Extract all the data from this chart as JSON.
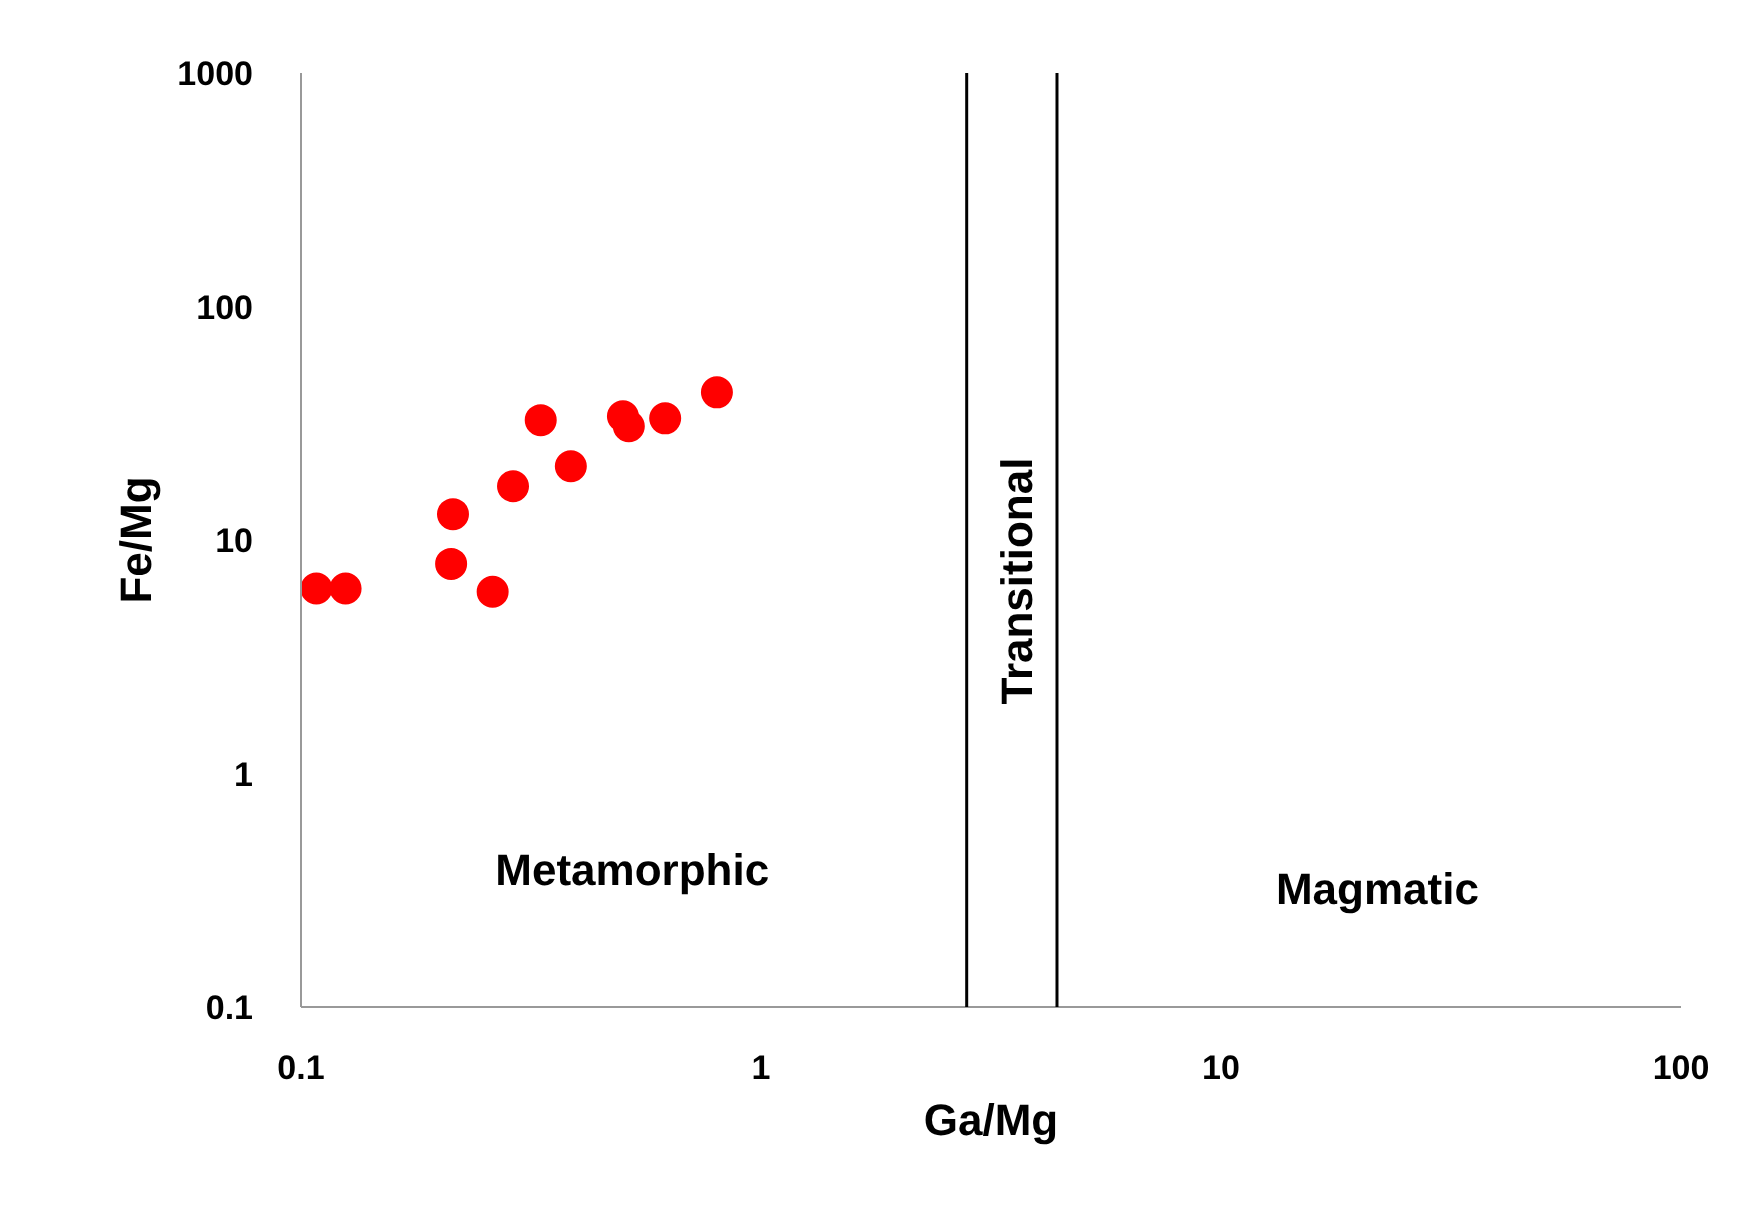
{
  "chart_data": {
    "type": "scatter",
    "xlabel": "Ga/Mg",
    "ylabel": "Fe/Mg",
    "log": "xy",
    "grid": false,
    "marker": "circle",
    "xlim": [
      0.1,
      100
    ],
    "ylim": [
      0.1,
      1000
    ],
    "xticks": [
      0.1,
      1,
      10,
      100
    ],
    "yticks": [
      0.1,
      1,
      10,
      100,
      1000
    ],
    "series": [
      {
        "color": "#ff0000",
        "x": [
          0.108,
          0.125,
          0.212,
          0.214,
          0.261,
          0.289,
          0.332,
          0.386,
          0.501,
          0.516,
          0.619,
          0.802
        ],
        "values": [
          6.2,
          6.2,
          7.9,
          12.9,
          6.0,
          17.0,
          32.6,
          20.7,
          33.9,
          30.7,
          33.2,
          42.9
        ]
      }
    ],
    "ref_lines": [
      {
        "axis": "x",
        "value": 2.8,
        "color": "#000000"
      },
      {
        "axis": "x",
        "value": 4.4,
        "color": "#000000"
      }
    ],
    "annotations": [
      "Metamorphic",
      "Magmatic",
      "Transitional"
    ]
  }
}
